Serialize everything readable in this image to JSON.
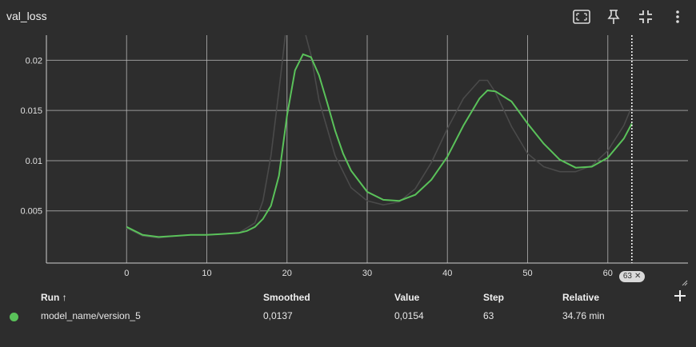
{
  "header": {
    "title": "val_loss",
    "icons": [
      "fit-to-screen-icon",
      "pin-icon",
      "collapse-icon",
      "more-vert-icon"
    ]
  },
  "colors": {
    "smoothed_line": "#5ac25a",
    "raw_line": "#4a4a4a",
    "grid": "#bdbdbd",
    "background": "#2d2d2d"
  },
  "chart_data": {
    "type": "line",
    "title": "",
    "xlabel": "",
    "ylabel": "",
    "xlim": [
      -10,
      70
    ],
    "ylim": [
      -0.0002,
      0.0225
    ],
    "x_ticks": [
      0,
      10,
      20,
      30,
      40,
      50,
      60
    ],
    "y_ticks": [
      0.005,
      0.01,
      0.015,
      0.02
    ],
    "y_tick_labels": [
      "0.005",
      "0.01",
      "0.015",
      "0.02"
    ],
    "grid": true,
    "cursor_step": 63,
    "cursor_label": "63",
    "series": [
      {
        "role": "smoothed",
        "x": [
          0,
          2,
          4,
          6,
          8,
          10,
          12,
          14,
          15,
          16,
          17,
          18,
          19,
          20,
          21,
          22,
          23,
          24,
          25,
          26,
          27,
          28,
          30,
          32,
          34,
          36,
          38,
          40,
          42,
          44,
          45,
          46,
          48,
          50,
          52,
          54,
          56,
          58,
          60,
          62,
          63
        ],
        "y": [
          0.0034,
          0.0026,
          0.0024,
          0.0025,
          0.0026,
          0.0026,
          0.0027,
          0.0028,
          0.003,
          0.0034,
          0.0042,
          0.0055,
          0.0085,
          0.0145,
          0.019,
          0.0206,
          0.0203,
          0.0185,
          0.0158,
          0.013,
          0.0107,
          0.009,
          0.0069,
          0.0061,
          0.006,
          0.0066,
          0.0081,
          0.0104,
          0.0135,
          0.0162,
          0.017,
          0.0169,
          0.0159,
          0.0137,
          0.0117,
          0.0101,
          0.0093,
          0.0094,
          0.0103,
          0.0122,
          0.0137
        ]
      },
      {
        "role": "raw",
        "x": [
          0,
          2,
          4,
          6,
          8,
          10,
          12,
          14,
          16,
          17,
          18,
          19,
          20,
          21,
          22,
          23,
          24,
          26,
          28,
          30,
          32,
          34,
          36,
          38,
          40,
          42,
          44,
          45,
          46,
          48,
          50,
          52,
          54,
          56,
          58,
          60,
          62,
          63
        ],
        "y": [
          0.0033,
          0.0025,
          0.0023,
          0.0025,
          0.0026,
          0.0026,
          0.0027,
          0.0028,
          0.0038,
          0.006,
          0.0105,
          0.017,
          0.024,
          0.026,
          0.0235,
          0.0205,
          0.016,
          0.0105,
          0.0073,
          0.006,
          0.0056,
          0.0059,
          0.0072,
          0.0098,
          0.0132,
          0.0162,
          0.018,
          0.018,
          0.0168,
          0.0134,
          0.0107,
          0.0094,
          0.0089,
          0.0089,
          0.0095,
          0.011,
          0.0135,
          0.0154
        ]
      }
    ]
  },
  "table": {
    "headers": {
      "run": "Run ↑",
      "smoothed": "Smoothed",
      "value": "Value",
      "step": "Step",
      "relative": "Relative"
    },
    "rows": [
      {
        "run": "model_name/version_5",
        "smoothed": "0,0137",
        "value": "0,0154",
        "step": "63",
        "relative": "34.76 min",
        "color": "#5ac25a"
      }
    ]
  }
}
